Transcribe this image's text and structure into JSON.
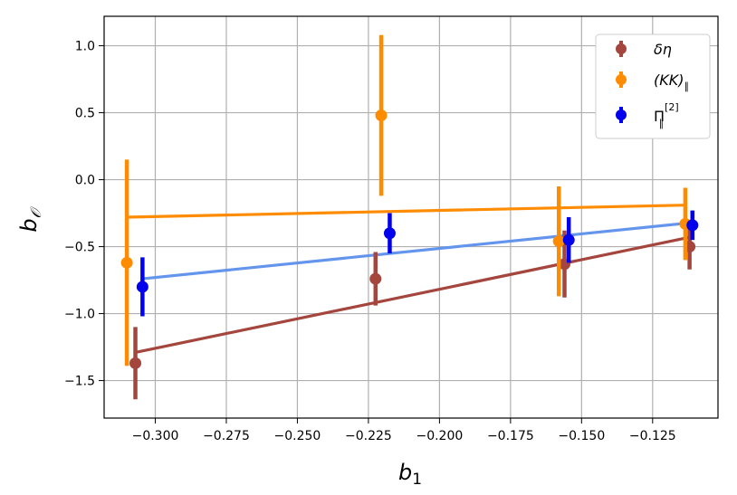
{
  "chart_data": {
    "type": "scatter",
    "title": "",
    "xlabel": "b",
    "xlabel_sub": "1",
    "ylabel": "b",
    "ylabel_sub": "𝒪",
    "xlim": [
      -0.318,
      -0.102
    ],
    "ylim": [
      -1.78,
      1.22
    ],
    "xticks": [
      -0.3,
      -0.275,
      -0.25,
      -0.225,
      -0.2,
      -0.175,
      -0.15,
      -0.125
    ],
    "xtick_labels": [
      "−0.300",
      "−0.275",
      "−0.250",
      "−0.225",
      "−0.200",
      "−0.175",
      "−0.150",
      "−0.125"
    ],
    "yticks": [
      -1.5,
      -1.0,
      -0.5,
      0.0,
      0.5,
      1.0
    ],
    "ytick_labels": [
      "−1.5",
      "−1.0",
      "−0.5",
      "0.0",
      "0.5",
      "1.0"
    ],
    "grid": true,
    "legend_position": "top-right",
    "series": [
      {
        "name": "δη",
        "color": "#a5463e",
        "points": [
          {
            "x": -0.307,
            "y": -1.37,
            "err": 0.27
          },
          {
            "x": -0.2225,
            "y": -0.74,
            "err": 0.2
          },
          {
            "x": -0.156,
            "y": -0.63,
            "err": 0.25
          },
          {
            "x": -0.112,
            "y": -0.5,
            "err": 0.17
          }
        ],
        "fit": [
          {
            "x": -0.307,
            "y": -1.29
          },
          {
            "x": -0.112,
            "y": -0.43
          }
        ]
      },
      {
        "name": "(KK)∥",
        "color": "#ff8c00",
        "points": [
          {
            "x": -0.31,
            "y": -0.62,
            "err": 0.77
          },
          {
            "x": -0.2205,
            "y": 0.48,
            "err": 0.6
          },
          {
            "x": -0.158,
            "y": -0.46,
            "err": 0.41
          },
          {
            "x": -0.1135,
            "y": -0.33,
            "err": 0.27
          }
        ],
        "fit": [
          {
            "x": -0.31,
            "y": -0.28
          },
          {
            "x": -0.1135,
            "y": -0.19
          }
        ]
      },
      {
        "name": "Π∥[2]",
        "color": "#0000ee",
        "fit_color": "#6495ed",
        "points": [
          {
            "x": -0.3045,
            "y": -0.8,
            "err": 0.22
          },
          {
            "x": -0.2175,
            "y": -0.4,
            "err": 0.15
          },
          {
            "x": -0.1545,
            "y": -0.45,
            "err": 0.17
          },
          {
            "x": -0.111,
            "y": -0.34,
            "err": 0.11
          }
        ],
        "fit": [
          {
            "x": -0.3045,
            "y": -0.74
          },
          {
            "x": -0.111,
            "y": -0.32
          }
        ]
      }
    ],
    "legend": [
      {
        "label": "δη",
        "color": "#a5463e"
      },
      {
        "label": "(KK)",
        "sub": "∥",
        "color": "#ff8c00"
      },
      {
        "label": "Π",
        "sub": "∥",
        "sup": "[2]",
        "color": "#0000ee"
      }
    ]
  }
}
